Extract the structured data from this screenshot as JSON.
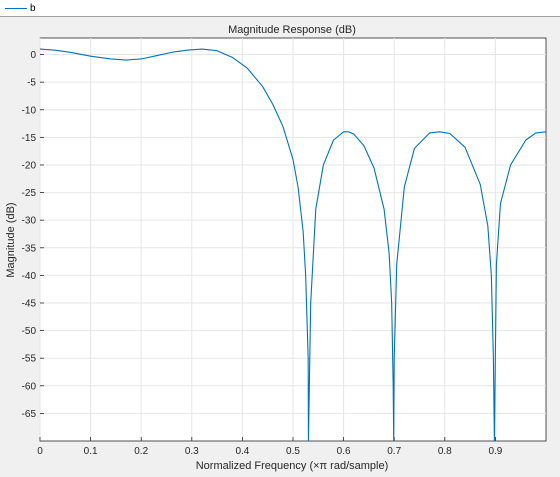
{
  "legend": {
    "label": "b",
    "color": "#0072bd"
  },
  "chart_data": {
    "type": "line",
    "title": "Magnitude Response (dB)",
    "xlabel": "Normalized Frequency (×π rad/sample)",
    "ylabel": "Magnitude (dB)",
    "xlim": [
      0,
      1
    ],
    "ylim": [
      -70,
      3
    ],
    "grid": true,
    "xticks": [
      0,
      0.1,
      0.2,
      0.3,
      0.4,
      0.5,
      0.6,
      0.7,
      0.8,
      0.9
    ],
    "xtick_labels": [
      "0",
      "0.1",
      "0.2",
      "0.3",
      "0.4",
      "0.5",
      "0.6",
      "0.7",
      "0.8",
      "0.9"
    ],
    "yticks": [
      0,
      -5,
      -10,
      -15,
      -20,
      -25,
      -30,
      -35,
      -40,
      -45,
      -50,
      -55,
      -60,
      -65
    ],
    "ytick_labels": [
      "0",
      "-5",
      "-10",
      "-15",
      "-20",
      "-25",
      "-30",
      "-35",
      "-40",
      "-45",
      "-50",
      "-55",
      "-60",
      "-65"
    ],
    "series": [
      {
        "name": "b",
        "color": "#0072bd",
        "x": [
          0,
          0.03,
          0.06,
          0.1,
          0.14,
          0.17,
          0.2,
          0.23,
          0.26,
          0.29,
          0.32,
          0.35,
          0.38,
          0.41,
          0.44,
          0.46,
          0.48,
          0.5,
          0.51,
          0.52,
          0.525,
          0.53,
          0.5305,
          0.535,
          0.545,
          0.56,
          0.58,
          0.6,
          0.61,
          0.62,
          0.64,
          0.66,
          0.68,
          0.69,
          0.695,
          0.698,
          0.699,
          0.7,
          0.705,
          0.72,
          0.74,
          0.77,
          0.79,
          0.81,
          0.84,
          0.87,
          0.885,
          0.892,
          0.896,
          0.898,
          0.902,
          0.91,
          0.93,
          0.96,
          0.98,
          1.0
        ],
        "y": [
          1.0,
          0.8,
          0.4,
          -0.3,
          -0.8,
          -1.0,
          -0.8,
          -0.2,
          0.4,
          0.8,
          1.0,
          0.7,
          -0.5,
          -2.5,
          -5.8,
          -9.0,
          -13.0,
          -19.0,
          -24.0,
          -32.0,
          -40.0,
          -55.0,
          -70.0,
          -45.0,
          -28.0,
          -20.0,
          -15.5,
          -14.0,
          -14.0,
          -14.4,
          -16.5,
          -20.5,
          -28.0,
          -36.0,
          -45.0,
          -60.0,
          -70.0,
          -55.0,
          -38.0,
          -24.0,
          -17.0,
          -14.2,
          -14.0,
          -14.3,
          -16.8,
          -23.5,
          -31.0,
          -40.0,
          -55.0,
          -70.0,
          -38.0,
          -27.0,
          -20.0,
          -15.5,
          -14.2,
          -14.0
        ]
      }
    ]
  }
}
